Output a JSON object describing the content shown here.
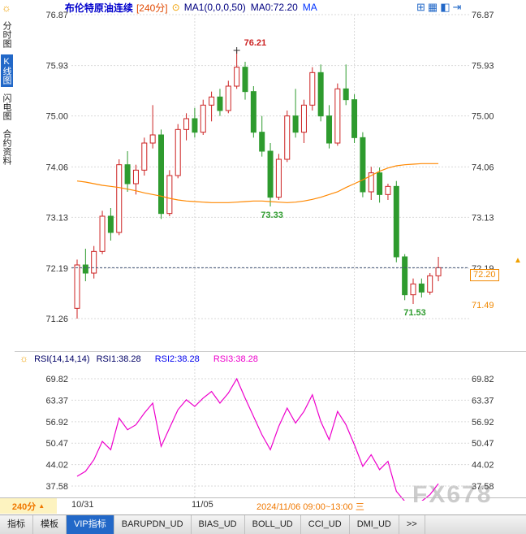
{
  "toolbar": {
    "symbol": "布伦特原油连续",
    "period": "[240分]",
    "ma1": "MA1(0,0,0,50)",
    "ma0": "MA0:72.20",
    "ma": "MA"
  },
  "icons": {
    "sun": "☼",
    "ma_circle": "⊙",
    "marker_up": "▲",
    "win_quad": "⊞",
    "win_grid": "▦",
    "win_split": "◧",
    "win_next": "⇥"
  },
  "sidebar": {
    "items": [
      {
        "label": "分时图",
        "active": false
      },
      {
        "label": "K线图",
        "active": true
      },
      {
        "label": "闪电图",
        "active": false
      },
      {
        "label": "合约资料",
        "active": false
      }
    ]
  },
  "rsi_panel_header": {
    "name": "RSI(14,14,14)",
    "rsi1": "RSI1:38.28",
    "rsi2": "RSI2:38.28",
    "rsi3": "RSI3:38.28"
  },
  "right_axis": {
    "price_tag": "72.20",
    "ref_price": "71.49"
  },
  "x_axis": {
    "session": "2024/11/06 09:00~13:00 三",
    "period_badge": "240分"
  },
  "watermark": "FX678",
  "bottom_tabs": [
    "指标",
    "模板",
    "VIP指标",
    "BARUPDN_UD",
    "BIAS_UD",
    "BOLL_UD",
    "CCI_UD",
    "DMI_UD",
    ">>"
  ],
  "chart_data": {
    "type": "candlestick",
    "title": "布伦特原油连续 240分",
    "ylim": [
      71.26,
      76.87
    ],
    "y_ticks": [
      "76.87",
      "75.93",
      "75.00",
      "74.06",
      "73.13",
      "72.19",
      "71.26"
    ],
    "colors": {
      "up": "#cc2222",
      "down": "#2e9b2e",
      "ma": "#ff8800",
      "rsi": "#ee00cc",
      "grid": "#d9d9d9",
      "last_line": "#445577",
      "annotation_high": "#cc2222",
      "annotation_low": "#2e9b2e"
    },
    "ohlc": [
      [
        71.45,
        72.35,
        71.26,
        72.25
      ],
      [
        72.25,
        72.55,
        71.95,
        72.1
      ],
      [
        72.1,
        72.6,
        72.0,
        72.5
      ],
      [
        72.5,
        73.25,
        72.45,
        73.15
      ],
      [
        73.15,
        73.3,
        72.7,
        72.85
      ],
      [
        72.85,
        74.2,
        72.8,
        74.1
      ],
      [
        74.1,
        74.35,
        73.6,
        73.75
      ],
      [
        73.75,
        74.1,
        73.55,
        74.0
      ],
      [
        74.0,
        74.6,
        73.9,
        74.5
      ],
      [
        74.5,
        75.2,
        74.4,
        74.65
      ],
      [
        74.65,
        74.75,
        73.1,
        73.2
      ],
      [
        73.2,
        74.0,
        73.15,
        73.9
      ],
      [
        73.9,
        74.85,
        73.85,
        74.75
      ],
      [
        74.75,
        75.05,
        74.55,
        74.95
      ],
      [
        74.95,
        75.15,
        74.6,
        74.7
      ],
      [
        74.7,
        75.3,
        74.65,
        75.2
      ],
      [
        75.2,
        75.45,
        74.9,
        75.35
      ],
      [
        75.35,
        75.5,
        75.0,
        75.1
      ],
      [
        75.1,
        75.65,
        75.05,
        75.55
      ],
      [
        75.55,
        76.21,
        75.5,
        75.9
      ],
      [
        75.9,
        76.0,
        75.3,
        75.45
      ],
      [
        75.45,
        75.55,
        74.6,
        74.7
      ],
      [
        74.7,
        75.0,
        74.25,
        74.35
      ],
      [
        74.35,
        74.5,
        73.33,
        73.5
      ],
      [
        73.5,
        74.3,
        73.45,
        74.2
      ],
      [
        74.2,
        75.1,
        74.15,
        75.0
      ],
      [
        75.0,
        75.5,
        74.6,
        74.7
      ],
      [
        74.7,
        75.3,
        74.5,
        75.2
      ],
      [
        75.2,
        75.9,
        75.1,
        75.8
      ],
      [
        75.8,
        75.95,
        74.9,
        75.0
      ],
      [
        75.0,
        75.2,
        74.4,
        74.5
      ],
      [
        74.5,
        75.6,
        74.45,
        75.5
      ],
      [
        75.5,
        75.95,
        75.2,
        75.3
      ],
      [
        75.3,
        75.4,
        74.5,
        74.6
      ],
      [
        74.6,
        74.7,
        73.5,
        73.6
      ],
      [
        73.6,
        74.06,
        73.45,
        73.95
      ],
      [
        73.95,
        74.05,
        73.4,
        73.55
      ],
      [
        73.55,
        73.75,
        73.45,
        73.7
      ],
      [
        73.7,
        73.8,
        72.3,
        72.4
      ],
      [
        72.4,
        72.45,
        71.6,
        71.7
      ],
      [
        71.7,
        72.0,
        71.53,
        71.9
      ],
      [
        71.9,
        72.0,
        71.65,
        71.75
      ],
      [
        71.75,
        72.1,
        71.7,
        72.05
      ],
      [
        72.05,
        72.4,
        71.95,
        72.2
      ]
    ],
    "ma": [
      73.8,
      73.78,
      73.75,
      73.72,
      73.7,
      73.68,
      73.65,
      73.62,
      73.58,
      73.55,
      73.52,
      73.48,
      73.45,
      73.43,
      73.42,
      73.41,
      73.4,
      73.4,
      73.4,
      73.41,
      73.42,
      73.43,
      73.43,
      73.42,
      73.41,
      73.4,
      73.41,
      73.43,
      73.46,
      73.5,
      73.55,
      73.6,
      73.68,
      73.75,
      73.82,
      73.9,
      73.98,
      74.04,
      74.08,
      74.1,
      74.11,
      74.12,
      74.12,
      74.12
    ],
    "last_price": 72.2,
    "x_marks": [
      {
        "index": 0,
        "label": "10/31"
      },
      {
        "index": 14,
        "label": "11/05"
      }
    ],
    "v_grid_indices": [
      14,
      33
    ],
    "annotations": [
      {
        "label": "76.21",
        "price": 76.21,
        "index": 19,
        "type": "high"
      },
      {
        "label": "73.33",
        "price": 73.33,
        "index": 23,
        "type": "low"
      },
      {
        "label": "71.53",
        "price": 71.53,
        "index": 40,
        "type": "low"
      }
    ],
    "rsi_panel": {
      "type": "line",
      "y_ticks": [
        "69.82",
        "63.37",
        "56.92",
        "50.47",
        "44.02",
        "37.58"
      ],
      "values": [
        40.5,
        42.0,
        45.5,
        51.0,
        48.5,
        58.0,
        54.5,
        56.0,
        59.5,
        62.5,
        49.5,
        55.0,
        60.5,
        63.5,
        61.5,
        64.0,
        66.0,
        62.5,
        65.5,
        69.8,
        64.0,
        58.5,
        53.0,
        48.5,
        55.5,
        61.0,
        56.5,
        60.0,
        65.0,
        57.0,
        51.5,
        60.0,
        56.0,
        50.0,
        43.5,
        47.0,
        42.5,
        45.0,
        36.0,
        33.0,
        32.0,
        33.0,
        35.0,
        38.28
      ],
      "last": 38.28
    }
  }
}
